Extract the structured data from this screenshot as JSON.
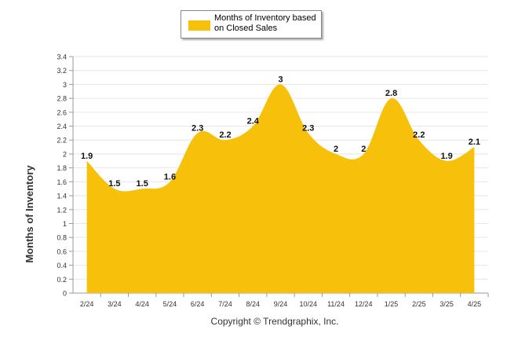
{
  "legend": {
    "label": "Months of Inventory based on Closed Sales"
  },
  "footer": {
    "copyright": "Copyright © Trendgraphix, Inc."
  },
  "colors": {
    "area": "#f7c10b",
    "grid": "#e6e6e6",
    "axis": "#555555"
  },
  "chart_data": {
    "type": "area",
    "categories": [
      "2/24",
      "3/24",
      "4/24",
      "5/24",
      "6/24",
      "7/24",
      "8/24",
      "9/24",
      "10/24",
      "11/24",
      "12/24",
      "1/25",
      "2/25",
      "3/25",
      "4/25"
    ],
    "series": [
      {
        "name": "Months of Inventory based on Closed Sales",
        "values": [
          1.9,
          1.5,
          1.5,
          1.6,
          2.3,
          2.2,
          2.4,
          3,
          2.3,
          2,
          2,
          2.8,
          2.2,
          1.9,
          2.1
        ],
        "labels": [
          "1.9",
          "1.5",
          "1.5",
          "1.6",
          "2.3",
          "2.2",
          "2.4",
          "3",
          "2.3",
          "2",
          "2",
          "2.8",
          "2.2",
          "1.9",
          "2.1"
        ]
      }
    ],
    "ylabel": "Months of Inventory",
    "xlabel": "",
    "ylim": [
      0,
      3.4
    ],
    "yticks": [
      "0",
      "0.2",
      "0.4",
      "0.6",
      "0.8",
      "1",
      "1.2",
      "1.4",
      "1.6",
      "1.8",
      "2",
      "2.2",
      "2.4",
      "2.6",
      "2.8",
      "3",
      "3.2",
      "3.4"
    ],
    "grid": true,
    "legend_position": "top-center"
  }
}
